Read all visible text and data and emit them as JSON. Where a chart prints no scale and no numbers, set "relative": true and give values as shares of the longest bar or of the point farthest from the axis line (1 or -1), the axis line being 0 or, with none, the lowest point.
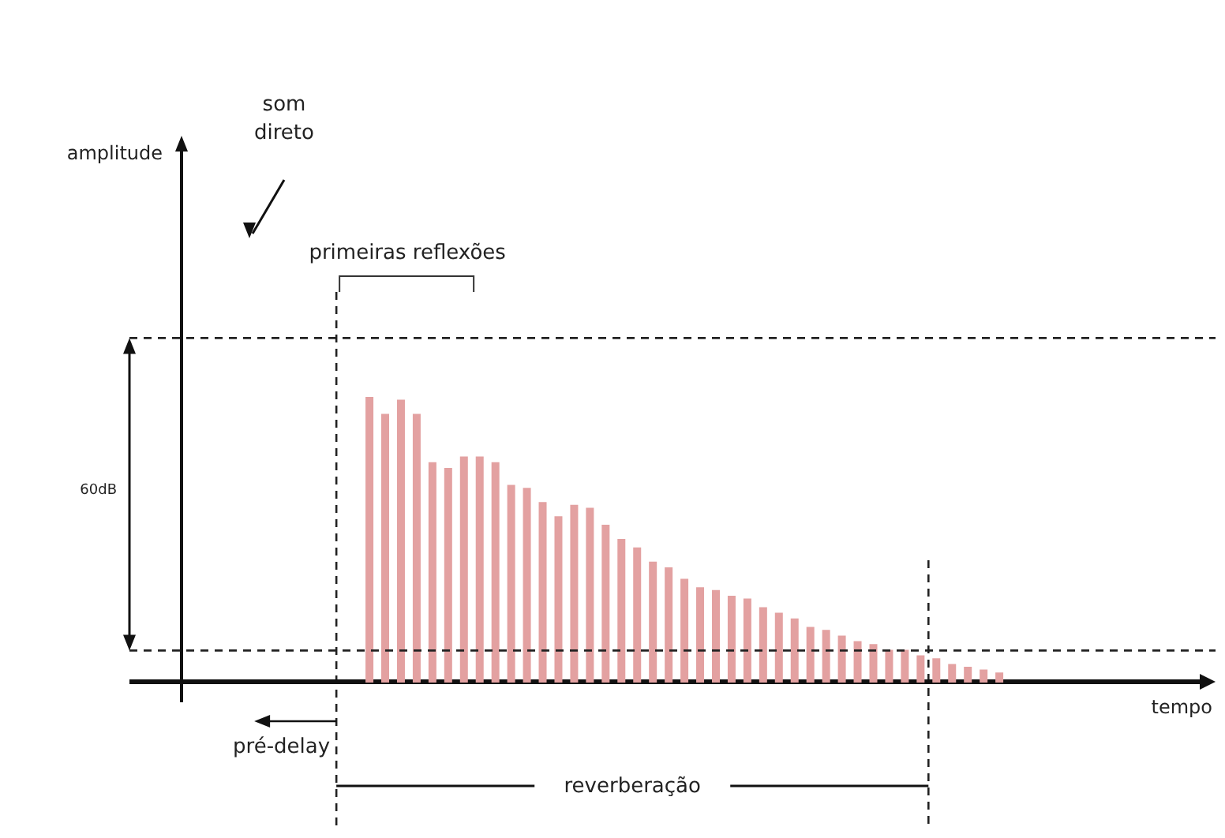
{
  "chart_data": {
    "type": "bar",
    "relative": true,
    "categories": [
      null,
      null,
      null,
      null,
      null,
      null,
      null,
      null,
      null,
      null,
      null,
      null,
      null,
      null,
      null,
      null,
      null,
      null,
      null,
      null,
      null,
      null,
      null,
      null,
      null,
      null,
      null,
      null,
      null,
      null,
      null,
      null,
      null,
      null,
      null,
      null,
      null,
      null,
      null,
      null,
      null
    ],
    "values": [
      1.0,
      0.94,
      0.99,
      0.94,
      0.77,
      0.75,
      0.79,
      0.79,
      0.77,
      0.69,
      0.68,
      0.63,
      0.58,
      0.62,
      0.61,
      0.55,
      0.5,
      0.47,
      0.42,
      0.4,
      0.36,
      0.33,
      0.32,
      0.3,
      0.29,
      0.26,
      0.24,
      0.22,
      0.19,
      0.18,
      0.16,
      0.14,
      0.13,
      0.11,
      0.11,
      0.09,
      0.08,
      0.06,
      0.05,
      0.04,
      0.03
    ],
    "color": "#e3a1a1",
    "ref_lines": [
      {
        "axis": "y",
        "value": 1.21,
        "line_style": "dashed",
        "color": "#222222"
      },
      {
        "axis": "y",
        "value": 0.11,
        "line_style": "dashed",
        "color": "#222222"
      }
    ],
    "annotations": [
      "som direto",
      "primeiras reflexões",
      "60dB",
      "pré-delay",
      "reverberação",
      "tempo",
      "amplitude"
    ]
  }
}
